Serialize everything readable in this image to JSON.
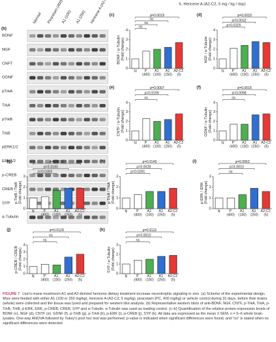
{
  "header_note": "5. Hericene A (A2-C2, 5 mg / kg / day)",
  "blot": {
    "panel": "(b)",
    "columns": [
      "Normal",
      "Piracetam (400)",
      "A1 (100)",
      "A1 (250)",
      "Hericene A (A2-C2, 5)"
    ],
    "rows": [
      "BDNF",
      "NGF",
      "CNFT",
      "GDNF",
      "pTrkA",
      "TrkA",
      "pTrkB",
      "TrkB",
      "pERK1/2",
      "ERK1/2",
      "p-CREB",
      "CREB",
      "SYP",
      "α-Tubulin"
    ]
  },
  "chart_data": [
    {
      "type": "bar",
      "panel": "(c)",
      "ylabel": "BDNF / α-Tubulin (Fold change)",
      "categories": [
        "N",
        "P (400)",
        "A1 (100)",
        "A1 (250)",
        "A2-C2 (5)"
      ],
      "values": [
        1,
        1.8,
        2.0,
        2.2,
        2.7
      ],
      "colors": [
        "#ffffff",
        "#ffffff",
        "#4caf50",
        "#2f6fd1",
        "#e53935"
      ],
      "ylim": [
        0,
        4
      ],
      "yticks": [
        0,
        1,
        2,
        3,
        4
      ],
      "annotations": [
        "p=0.0019",
        "ns",
        "ns",
        "ns"
      ]
    },
    {
      "type": "bar",
      "panel": "(d)",
      "ylabel": "NGF / α-Tubulin (Fold change)",
      "categories": [
        "N",
        "P (400)",
        "A1 (100)",
        "A1 (250)",
        "A2-C2 (5)"
      ],
      "values": [
        1,
        2.1,
        2.4,
        2.8,
        2.7
      ],
      "colors": [
        "#ffffff",
        "#ffffff",
        "#4caf50",
        "#2f6fd1",
        "#e53935"
      ],
      "ylim": [
        0,
        4
      ],
      "yticks": [
        0,
        1,
        2,
        3,
        4
      ],
      "annotations": [
        "p=0.0033",
        "p=0.0032",
        "p=0.0329"
      ]
    },
    {
      "type": "bar",
      "panel": "(e)",
      "ylabel": "CNTF / α-Tubulin (Fold change)",
      "categories": [
        "N",
        "P (400)",
        "A1 (100)",
        "A1 (250)",
        "A2-C2 (5)"
      ],
      "values": [
        1,
        2.3,
        2.0,
        2.2,
        2.8
      ],
      "colors": [
        "#ffffff",
        "#ffffff",
        "#4caf50",
        "#2f6fd1",
        "#e53935"
      ],
      "ylim": [
        0,
        4
      ],
      "yticks": [
        0,
        1,
        2,
        3,
        4
      ],
      "annotations": [
        "p=0.0007",
        "p=0.0199",
        "ns"
      ]
    },
    {
      "type": "bar",
      "panel": "(f)",
      "ylabel": "GDNF / α-Tubulin (Fold change)",
      "categories": [
        "N",
        "P (400)",
        "A1 (100)",
        "A1 (250)",
        "A2-C2 (5)"
      ],
      "values": [
        1,
        1.7,
        1.7,
        2.7,
        2.8
      ],
      "colors": [
        "#ffffff",
        "#ffffff",
        "#4caf50",
        "#2f6fd1",
        "#e53935"
      ],
      "ylim": [
        0,
        4
      ],
      "yticks": [
        0,
        1,
        2,
        3,
        4
      ],
      "annotations": [
        "p=0.0015",
        "p=0.0098",
        "ns"
      ]
    },
    {
      "type": "bar",
      "panel": "(g)",
      "ylabel": "p-TrkB / TrkB (Fold change)",
      "categories": [
        "N",
        "P (400)",
        "A1 (100)",
        "A1 (250)",
        "A2-C2 (5)"
      ],
      "values": [
        1,
        1.1,
        1.7,
        1.9,
        1.9
      ],
      "colors": [
        "#ffffff",
        "#ffffff",
        "#4caf50",
        "#2f6fd1",
        "#e53935"
      ],
      "ylim": [
        0,
        3
      ],
      "yticks": [
        0,
        1,
        2,
        3
      ],
      "annotations": [
        "p=0.0019",
        "p=0.0160",
        "p=0.0303"
      ]
    },
    {
      "type": "bar",
      "panel": "(h)",
      "ylabel": "p-TrkA / TrkA (Fold change)",
      "categories": [
        "N",
        "P (400)",
        "A1 (100)",
        "A1 (250)",
        "A2-C2 (5)"
      ],
      "values": [
        1,
        1.3,
        1.6,
        1.6,
        1.9
      ],
      "colors": [
        "#ffffff",
        "#ffffff",
        "#4caf50",
        "#2f6fd1",
        "#e53935"
      ],
      "ylim": [
        0,
        3
      ],
      "yticks": [
        0,
        1,
        2,
        3
      ],
      "annotations": [
        "p=0.0145",
        "p=0.0028",
        "p=0.0291"
      ]
    },
    {
      "type": "bar",
      "panel": "(i)",
      "ylabel": "p-ERK / ERK (Fold change)",
      "categories": [
        "N",
        "P (400)",
        "A1 (100)",
        "A1 (250)",
        "A2-C2 (5)"
      ],
      "values": [
        1,
        1.0,
        1.3,
        1.9,
        1.6
      ],
      "colors": [
        "#ffffff",
        "#ffffff",
        "#4caf50",
        "#2f6fd1",
        "#e53935"
      ],
      "ylim": [
        0,
        3
      ],
      "yticks": [
        0,
        1,
        2,
        3
      ],
      "annotations": [
        "p=0.0062",
        "p=0.0010",
        "ns"
      ]
    },
    {
      "type": "bar",
      "panel": "(j)",
      "ylabel": "p-CREB / CREB (Fold change)",
      "categories": [
        "N",
        "P (400)",
        "A1 (100)",
        "A1 (250)",
        "A2-C2 (5)"
      ],
      "values": [
        1,
        1.3,
        1.2,
        2.3,
        2.7
      ],
      "colors": [
        "#ffffff",
        "#ffffff",
        "#4caf50",
        "#2f6fd1",
        "#e53935"
      ],
      "ylim": [
        0,
        4
      ],
      "yticks": [
        0,
        1,
        2,
        3,
        4
      ],
      "annotations": [
        "p=0.0129",
        "ns",
        "ns"
      ]
    },
    {
      "type": "bar",
      "panel": "(k)",
      "ylabel": "SYP / α-Tubulin (Fold change)",
      "categories": [
        "N",
        "P (400)",
        "A1 (100)",
        "A1 (250)",
        "A2-C2 (5)"
      ],
      "values": [
        1,
        1.4,
        1.5,
        1.8,
        1.9
      ],
      "colors": [
        "#ffffff",
        "#ffffff",
        "#4caf50",
        "#2f6fd1",
        "#e53935"
      ],
      "ylim": [
        0,
        3
      ],
      "yticks": [
        0,
        1,
        2,
        3
      ],
      "annotations": [
        "p=0.0112",
        "p=0.0010",
        "ns"
      ]
    }
  ],
  "caption": {
    "label": "FIGURE 7",
    "text": "Lion's mane mushroom A1 and A2-derived hericene dietary treatment increase neurotrophic signaling in vivo. (a) Scheme of the experimental design. Mice were feeded with either A1 (100 or 250 mg/kg), hericene A (A2-C2, 5 mg/kg), piracetam (PC, 400 mg/kg) or vehicle control during 31 days, before their brains (whole) were collected and the tissue was lysed and prepared for western blot analysis. (b) Representative western blots of anti-BDNF, NGF, CNTF, p-TrkA, TrkA, p-TrkB, TrkB, p-ERK, ERK, p-CREB, CREB, SYP and α-Tubulin. α-Tubulin was used as loading control. (c–k) Quantification of the relative protein expression levels of BDNF (c), NGF (d), CNTF (e). GDNF (f), p-TrkB (g), p-TrkA (h), p-ERK (i), p-CREB (j), SYP (k). All data are expressed as the mean ± SEM, n = 5–6 whole brain lysates. One-way ANOVA followed by Tukey's post hoc test was performed. p-value is indicated when significant differences were found, and \"ns\" is stated when no significant differences were detected."
  }
}
